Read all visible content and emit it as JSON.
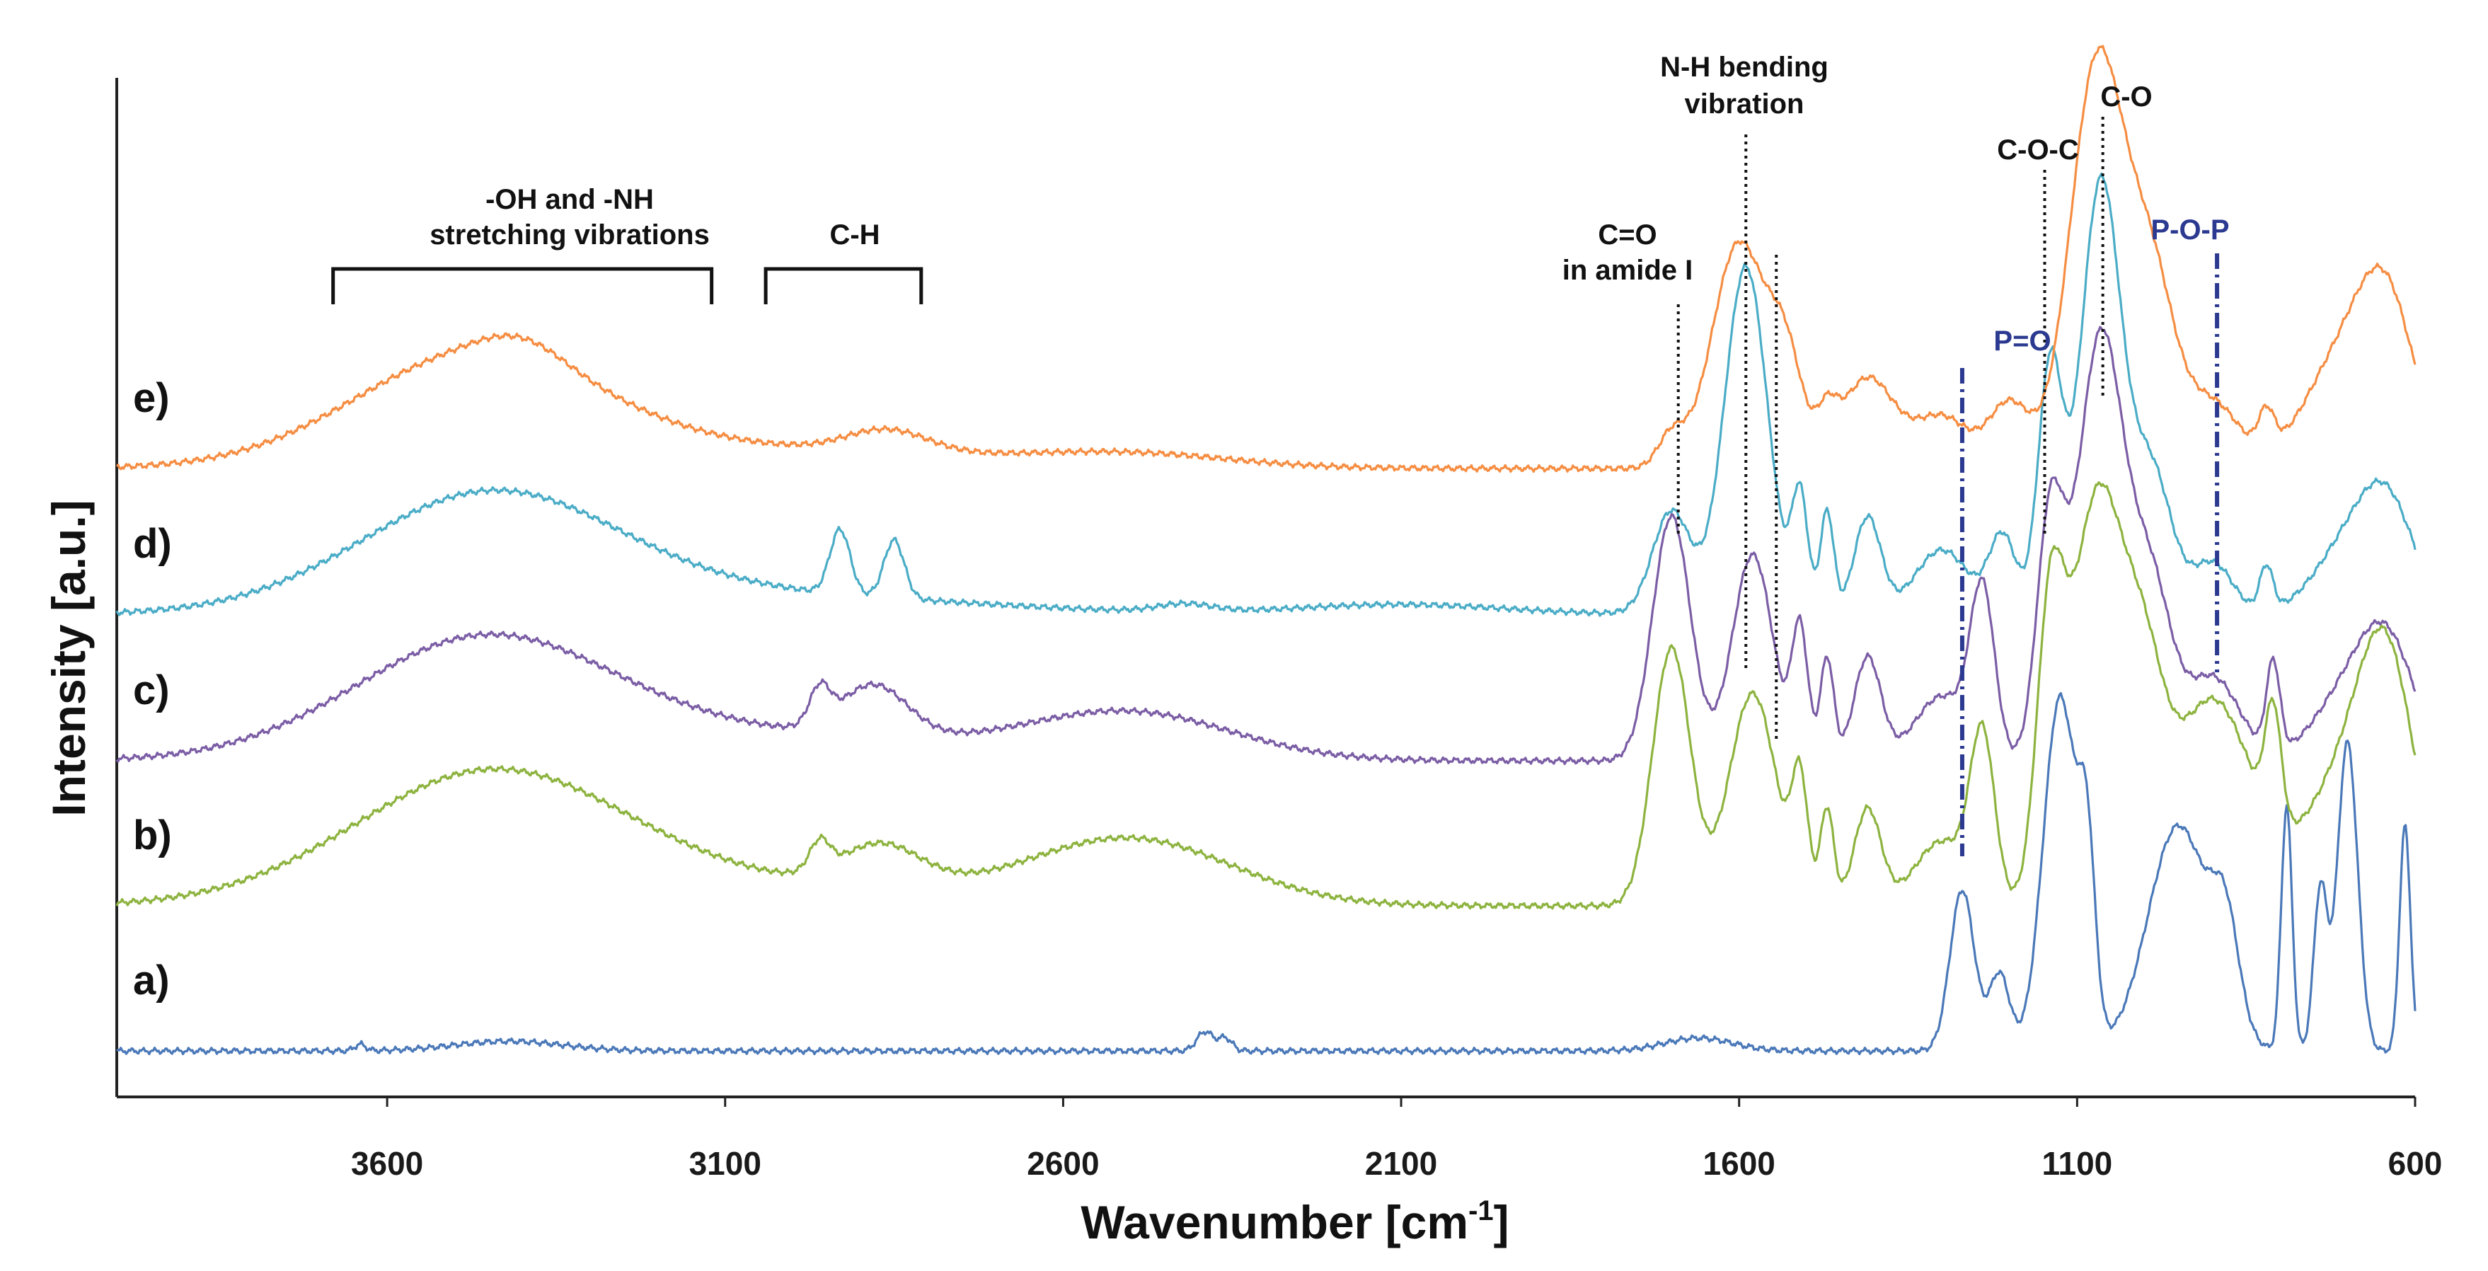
{
  "chart_data": {
    "type": "line",
    "title": "",
    "xlabel": "Wavenumber [cm",
    "xlabel_sup": "-1",
    "xlabel_close": "]",
    "ylabel": "Intensity [a.u.]",
    "xlim": [
      4000,
      600
    ],
    "x_reversed": true,
    "x_ticks": [
      3600,
      3100,
      2600,
      2100,
      1600,
      1100,
      600
    ],
    "y_ticks": [],
    "grid": false,
    "legend": "none",
    "series": [
      {
        "name": "a)",
        "color": "#4a78b8",
        "baseline": 0,
        "peaks": [
          [
            3640,
            0.1,
            8
          ],
          [
            3420,
            0.15,
            80
          ],
          [
            2390,
            0.3,
            12
          ],
          [
            2360,
            0.2,
            10
          ],
          [
            1660,
            0.2,
            50
          ],
          [
            1270,
            2.5,
            18
          ],
          [
            1215,
            1.2,
            15
          ],
          [
            1125,
            5.5,
            25
          ],
          [
            1085,
            2.5,
            12
          ],
          [
            950,
            3.5,
            45
          ],
          [
            880,
            1.5,
            20
          ],
          [
            790,
            3.8,
            8
          ],
          [
            740,
            2.5,
            10
          ],
          [
            700,
            4.8,
            15
          ],
          [
            615,
            3.5,
            8
          ]
        ]
      },
      {
        "name": "b)",
        "color": "#8db33f",
        "baseline": 1.1,
        "peaks": [
          [
            3450,
            2,
            200
          ],
          [
            3050,
            0.3,
            300
          ],
          [
            2960,
            0.45,
            15
          ],
          [
            2870,
            0.65,
            60
          ],
          [
            2500,
            1,
            150
          ],
          [
            1700,
            4,
            28
          ],
          [
            1580,
            3.3,
            35
          ],
          [
            1510,
            1.8,
            12
          ],
          [
            1470,
            1.5,
            10
          ],
          [
            1410,
            1.5,
            20
          ],
          [
            1300,
            1,
            40
          ],
          [
            1240,
            2.5,
            18
          ],
          [
            1140,
            4,
            20
          ],
          [
            1070,
            6.3,
            40
          ],
          [
            1000,
            2.5,
            30
          ],
          [
            900,
            3.2,
            60
          ],
          [
            810,
            1.8,
            12
          ],
          [
            700,
            2,
            60
          ],
          [
            640,
            3,
            40
          ]
        ]
      },
      {
        "name": "c)",
        "color": "#7b5da5",
        "baseline": 2.2,
        "peaks": [
          [
            3460,
            1.8,
            190
          ],
          [
            3050,
            0.4,
            300
          ],
          [
            2960,
            0.55,
            15
          ],
          [
            2880,
            0.8,
            50
          ],
          [
            2500,
            0.7,
            150
          ],
          [
            1700,
            3.8,
            28
          ],
          [
            1580,
            3.2,
            30
          ],
          [
            1510,
            2,
            12
          ],
          [
            1470,
            1.6,
            10
          ],
          [
            1410,
            1.6,
            20
          ],
          [
            1300,
            1,
            40
          ],
          [
            1240,
            2.5,
            18
          ],
          [
            1140,
            3.6,
            20
          ],
          [
            1065,
            6.6,
            35
          ],
          [
            990,
            2.5,
            30
          ],
          [
            900,
            1.3,
            40
          ],
          [
            810,
            1.4,
            10
          ],
          [
            700,
            1,
            50
          ],
          [
            640,
            1.6,
            40
          ]
        ]
      },
      {
        "name": "d)",
        "color": "#4aacc6",
        "baseline": 3.3,
        "peaks": [
          [
            3450,
            1.8,
            190
          ],
          [
            3050,
            0.3,
            300
          ],
          [
            2930,
            1,
            15
          ],
          [
            2850,
            0.9,
            15
          ],
          [
            2420,
            0.12,
            40
          ],
          [
            2100,
            0.15,
            150
          ],
          [
            1700,
            1.6,
            28
          ],
          [
            1590,
            5.4,
            32
          ],
          [
            1510,
            1.8,
            12
          ],
          [
            1470,
            1.6,
            10
          ],
          [
            1410,
            1.5,
            20
          ],
          [
            1300,
            1,
            40
          ],
          [
            1210,
            1.2,
            20
          ],
          [
            1140,
            3.8,
            18
          ],
          [
            1065,
            6.7,
            30
          ],
          [
            990,
            2.2,
            30
          ],
          [
            900,
            0.8,
            30
          ],
          [
            820,
            0.7,
            10
          ],
          [
            700,
            1,
            50
          ],
          [
            640,
            1.5,
            40
          ]
        ]
      },
      {
        "name": "e)",
        "color": "#f58d42",
        "baseline": 4.4,
        "peaks": [
          [
            3470,
            1.7,
            180
          ],
          [
            3400,
            0.3,
            60
          ],
          [
            3050,
            0.3,
            300
          ],
          [
            2860,
            0.35,
            60
          ],
          [
            2500,
            0.2,
            150
          ],
          [
            1700,
            0.5,
            20
          ],
          [
            1600,
            3.5,
            40
          ],
          [
            1530,
            1.5,
            25
          ],
          [
            1470,
            0.6,
            15
          ],
          [
            1410,
            1.4,
            40
          ],
          [
            1300,
            0.8,
            40
          ],
          [
            1200,
            1,
            30
          ],
          [
            1070,
            6.3,
            40
          ],
          [
            990,
            2.8,
            35
          ],
          [
            900,
            1,
            40
          ],
          [
            820,
            0.6,
            12
          ],
          [
            700,
            1.8,
            60
          ],
          [
            640,
            1.9,
            40
          ]
        ]
      }
    ],
    "annotations": [
      {
        "id": "oh-nh",
        "lines": [
          "-OH and -NH",
          "stretching vibrations"
        ],
        "range": [
          3680,
          3120
        ],
        "style": "bracket"
      },
      {
        "id": "ch",
        "lines": [
          "C-H"
        ],
        "range": [
          3040,
          2810
        ],
        "style": "bracket"
      },
      {
        "id": "amide-i",
        "lines": [
          "C=O",
          "in amide I"
        ],
        "at": 1690,
        "style": "dotted"
      },
      {
        "id": "nh-bending",
        "lines": [
          "N-H bending",
          "vibration"
        ],
        "at": 1590,
        "style": "dotted"
      },
      {
        "id": "nh-bending-2",
        "lines": [],
        "at": 1545,
        "style": "dotted"
      },
      {
        "id": "coc",
        "lines": [
          "C-O-C"
        ],
        "at": 1148,
        "style": "dotted"
      },
      {
        "id": "co",
        "lines": [
          "C-O"
        ],
        "at": 1062,
        "style": "dotted"
      },
      {
        "id": "p-o",
        "lines": [
          "P=O"
        ],
        "at": 1270,
        "style": "dashdot"
      },
      {
        "id": "pop",
        "lines": [
          "P-O-P"
        ],
        "at": 893,
        "style": "dashdot"
      }
    ]
  }
}
